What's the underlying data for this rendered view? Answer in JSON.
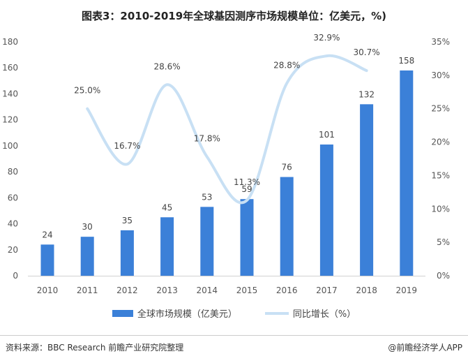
{
  "title": "图表3：2010-2019年全球基因测序市场规模单位：亿美元，%)",
  "chart_data": {
    "type": "bar+line",
    "title": "图表3：2010-2019年全球基因测序市场规模单位：亿美元，%)",
    "categories": [
      "2010",
      "2011",
      "2012",
      "2013",
      "2014",
      "2015",
      "2016",
      "2017",
      "2018",
      "2019"
    ],
    "series": [
      {
        "name": "全球市场规模（亿美元）",
        "type": "bar",
        "axis": "left",
        "color": "#3b80d8",
        "values": [
          24,
          30,
          35,
          45,
          53,
          59,
          76,
          101,
          132,
          158
        ],
        "labels": [
          "24",
          "30",
          "35",
          "45",
          "53",
          "59",
          "76",
          "101",
          "132",
          "158"
        ]
      },
      {
        "name": "同比增长（%）",
        "type": "line",
        "axis": "right",
        "color": "#c8e0f4",
        "values": [
          null,
          25.0,
          16.7,
          28.6,
          17.8,
          11.3,
          28.8,
          32.9,
          30.7,
          null
        ],
        "labels": [
          "",
          "25.0%",
          "16.7%",
          "28.6%",
          "17.8%",
          "11.3%",
          "28.8%",
          "32.9%",
          "30.7%",
          ""
        ]
      }
    ],
    "left_axis": {
      "ylim": [
        0,
        180
      ],
      "ticks": [
        "0",
        "20",
        "40",
        "60",
        "80",
        "100",
        "120",
        "140",
        "160",
        "180"
      ]
    },
    "right_axis": {
      "ylim": [
        0,
        35
      ],
      "ticks": [
        "0%",
        "5%",
        "10%",
        "15%",
        "20%",
        "25%",
        "30%",
        "35%"
      ]
    },
    "grid": false,
    "legend": "bottom"
  },
  "footer": {
    "source": "资料来源：BBC Research 前瞻产业研究院整理",
    "brand": "@前瞻经济学人APP"
  }
}
